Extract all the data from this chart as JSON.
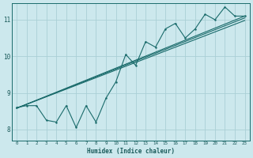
{
  "xlabel": "Humidex (Indice chaleur)",
  "bg_color": "#cce8ed",
  "grid_color": "#aacfd6",
  "line_color": "#1a6b6b",
  "xlim": [
    -0.5,
    23.5
  ],
  "ylim": [
    7.7,
    11.45
  ],
  "xticks": [
    0,
    1,
    2,
    3,
    4,
    5,
    6,
    7,
    8,
    9,
    10,
    11,
    12,
    13,
    14,
    15,
    16,
    17,
    18,
    19,
    20,
    21,
    22,
    23
  ],
  "yticks": [
    8,
    9,
    10,
    11
  ],
  "series1_x": [
    0,
    1,
    2,
    3,
    4,
    5,
    6,
    7,
    8,
    9,
    10,
    11,
    12,
    13,
    14,
    15,
    16,
    17,
    18,
    19,
    20,
    21,
    22,
    23
  ],
  "series1_y": [
    8.6,
    8.65,
    8.65,
    8.25,
    8.2,
    8.65,
    8.05,
    8.65,
    8.2,
    8.85,
    9.3,
    10.05,
    9.75,
    10.4,
    10.25,
    10.75,
    10.9,
    10.5,
    10.75,
    11.15,
    11.0,
    11.35,
    11.1,
    11.1
  ],
  "trend1_x": [
    0,
    23
  ],
  "trend1_y": [
    8.58,
    11.1
  ],
  "trend2_x": [
    0,
    23
  ],
  "trend2_y": [
    8.58,
    11.05
  ],
  "trend3_x": [
    0,
    23
  ],
  "trend3_y": [
    8.58,
    10.98
  ]
}
